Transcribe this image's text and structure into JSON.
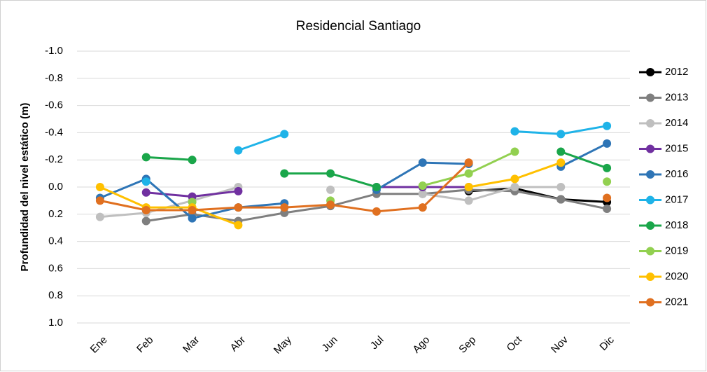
{
  "chart_data": {
    "type": "line",
    "title": "Residencial Santiago",
    "y_label": "Profundidad del nivel estático (m)",
    "categories": [
      "Ene",
      "Feb",
      "Mar",
      "Abr",
      "May",
      "Jun",
      "Jul",
      "Ago",
      "Sep",
      "Oct",
      "Nov",
      "Dic"
    ],
    "ylim": [
      -1,
      1
    ],
    "y_reversed": true,
    "yticks": [
      {
        "value": -1,
        "label": "-1.0"
      },
      -0.8,
      -0.6,
      -0.4,
      -0.2,
      {
        "value": 0,
        "label": "0.0"
      },
      0.2,
      0.4,
      0.6,
      0.8,
      {
        "value": 1,
        "label": "1.0"
      }
    ],
    "grid": true,
    "legend": "right",
    "series": [
      {
        "name": "2012",
        "color": "#000000",
        "values": [
          null,
          null,
          null,
          null,
          null,
          null,
          null,
          null,
          0.03,
          0.01,
          0.09,
          0.11
        ]
      },
      {
        "name": "2013",
        "color": "#7f7f7f",
        "values": [
          null,
          0.25,
          0.2,
          0.25,
          0.19,
          0.14,
          0.05,
          0.05,
          0.02,
          0.03,
          0.09,
          0.16
        ]
      },
      {
        "name": "2014",
        "color": "#bfbfbf",
        "values": [
          0.22,
          0.19,
          0.1,
          0.0,
          null,
          0.02,
          null,
          0.05,
          0.1,
          0.0,
          0.0,
          null
        ]
      },
      {
        "name": "2015",
        "color": "#7030a0",
        "values": [
          null,
          0.04,
          0.07,
          0.03,
          null,
          null,
          0.0,
          0.0,
          0.0,
          null,
          null,
          null
        ]
      },
      {
        "name": "2016",
        "color": "#2e75b6",
        "values": [
          0.08,
          -0.06,
          0.23,
          0.15,
          0.12,
          null,
          0.02,
          -0.18,
          -0.17,
          null,
          -0.15,
          -0.32
        ]
      },
      {
        "name": "2017",
        "color": "#1fb3e8",
        "values": [
          null,
          -0.04,
          null,
          -0.27,
          -0.39,
          null,
          null,
          null,
          null,
          -0.41,
          -0.39,
          -0.45
        ]
      },
      {
        "name": "2018",
        "color": "#1aa64a",
        "values": [
          null,
          -0.22,
          -0.2,
          null,
          -0.1,
          -0.1,
          0.0,
          null,
          null,
          null,
          -0.26,
          -0.14
        ]
      },
      {
        "name": "2019",
        "color": "#92d050",
        "values": [
          null,
          null,
          0.11,
          null,
          null,
          0.1,
          null,
          -0.01,
          -0.1,
          -0.26,
          null,
          -0.04
        ]
      },
      {
        "name": "2020",
        "color": "#ffc000",
        "values": [
          0.0,
          0.15,
          0.15,
          0.28,
          null,
          null,
          null,
          null,
          0.0,
          -0.06,
          -0.18,
          null
        ]
      },
      {
        "name": "2021",
        "color": "#e07020",
        "values": [
          0.1,
          0.17,
          0.17,
          0.15,
          0.15,
          0.13,
          0.18,
          0.15,
          -0.18,
          null,
          null,
          0.08
        ]
      }
    ]
  }
}
